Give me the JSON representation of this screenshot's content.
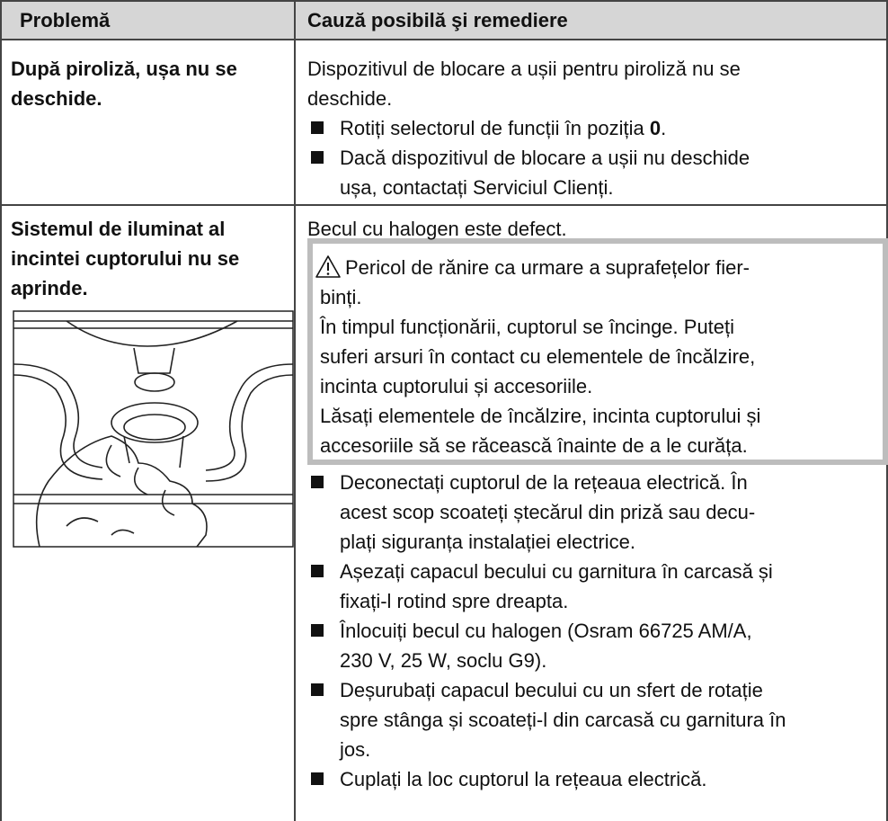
{
  "header": {
    "problem": "Problemă",
    "cause": "Cauză posibilă şi remediere"
  },
  "rows": [
    {
      "problem": [
        "După piroliză, ușa nu se",
        "deschide."
      ],
      "cause": [
        "Dispozitivul de blocare a ușii pentru piroliză nu se",
        "deschide."
      ],
      "steps": [
        [
          "Rotiți selectorul de funcții în poziția ",
          "0",
          "."
        ],
        [
          "Dacă dispozitivul de blocare a ușii nu deschide",
          "ușa, contactați Serviciul Clienți."
        ]
      ]
    },
    {
      "problem": [
        "Sistemul de iluminat al",
        "incintei cuptorului nu se",
        "aprinde."
      ],
      "cause": [
        "Becul cu halogen este defect."
      ],
      "warning": [
        "Pericol de rănire ca urmare a suprafețelor fier-",
        "binți.",
        "În timpul funcționării, cuptorul se încinge. Puteți",
        "suferi arsuri în contact cu elementele de încălzire,",
        "incinta cuptorului și accesoriile.",
        "Lăsați elementele de încălzire, incinta cuptorului și",
        "accesoriile să se răcească înainte de a le curăța."
      ],
      "steps": [
        [
          "Deconectați cuptorul de la rețeaua electrică. În",
          "acest scop scoateți ștecărul din priză sau decu-",
          "plați siguranța instalației electrice."
        ],
        [
          "Așezați capacul becului cu garnitura în carcasă și",
          "fixați-l rotind spre dreapta."
        ],
        [
          "Înlocuiți becul cu halogen (Osram 66725 AM/A,",
          "230 V, 25 W, soclu G9)."
        ],
        [
          "Deșurubați capacul becului cu un sfert de rotație",
          "spre stânga și scoateți-l din carcasă cu garnitura în",
          "jos."
        ],
        [
          "Cuplați la loc cuptorul la rețeaua electrică."
        ]
      ]
    }
  ]
}
